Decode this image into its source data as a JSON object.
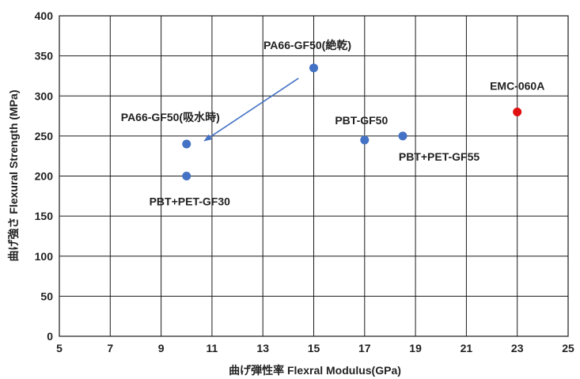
{
  "chart_data": {
    "type": "scatter",
    "title": "",
    "xlabel": "曲げ弾性率 Flexral Modulus(GPa)",
    "ylabel": "曲げ強さ Flexural Strength (MPa)",
    "xlim": [
      5,
      25
    ],
    "ylim": [
      0,
      400
    ],
    "xticks": [
      5,
      7,
      9,
      11,
      13,
      15,
      17,
      19,
      21,
      23,
      25
    ],
    "yticks": [
      0,
      50,
      100,
      150,
      200,
      250,
      300,
      350,
      400
    ],
    "grid": true,
    "points": [
      {
        "label": "PA66-GF50(絶乾)",
        "x": 15,
        "y": 335,
        "color": "#4472C4"
      },
      {
        "label": "PA66-GF50(吸水時)",
        "x": 10,
        "y": 240,
        "color": "#4472C4"
      },
      {
        "label": "PBT+PET-GF30",
        "x": 10,
        "y": 200,
        "color": "#4472C4"
      },
      {
        "label": "PBT-GF50",
        "x": 17,
        "y": 245,
        "color": "#4472C4"
      },
      {
        "label": "PBT+PET-GF55",
        "x": 18.5,
        "y": 250,
        "color": "#4472C4"
      },
      {
        "label": "EMC-060A",
        "x": 23,
        "y": 280,
        "color": "#E01010"
      }
    ],
    "annotations": [
      {
        "type": "arrow",
        "from": [
          14.4,
          322
        ],
        "to": [
          10.7,
          244
        ],
        "color": "#4472C4"
      }
    ]
  }
}
